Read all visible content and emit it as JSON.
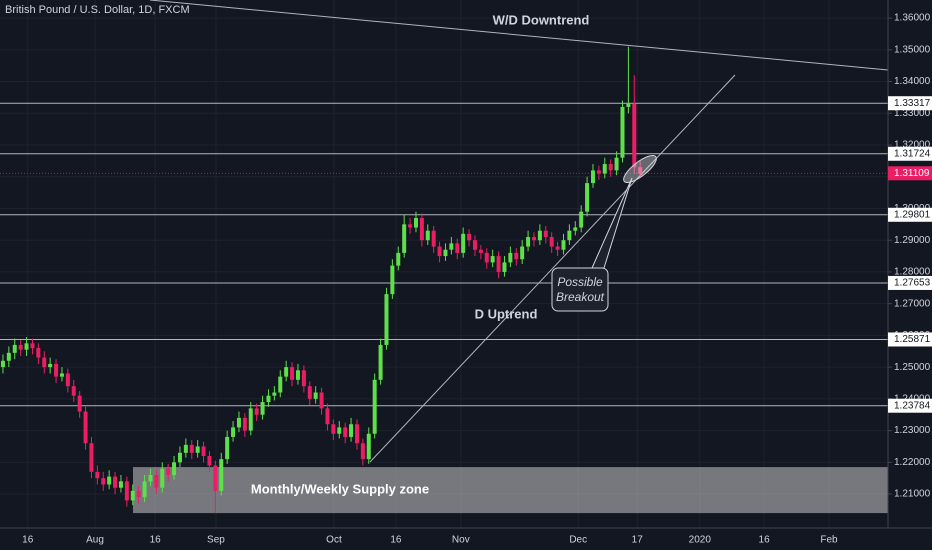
{
  "chart_data": {
    "type": "candlestick",
    "title": "British Pound / U.S. Dollar, 1D, FXCM",
    "up_color": "#5ee04a",
    "down_color": "#ec1e63",
    "grid": true,
    "ylim": [
      1.1993,
      1.3657
    ],
    "xlim": [
      -0.5,
      150
    ],
    "yticks": [
      {
        "value": 1.36,
        "label": "1.36000"
      },
      {
        "value": 1.35,
        "label": "1.35000"
      },
      {
        "value": 1.34,
        "label": "1.34000"
      },
      {
        "value": 1.33,
        "label": "1.33000"
      },
      {
        "value": 1.32,
        "label": "1.32000"
      },
      {
        "value": 1.31,
        "label": "1.31000"
      },
      {
        "value": 1.3,
        "label": "1.30000"
      },
      {
        "value": 1.29,
        "label": "1.29000"
      },
      {
        "value": 1.28,
        "label": "1.28000"
      },
      {
        "value": 1.27,
        "label": "1.27000"
      },
      {
        "value": 1.26,
        "label": "1.26000"
      },
      {
        "value": 1.25,
        "label": "1.25000"
      },
      {
        "value": 1.24,
        "label": "1.24000"
      },
      {
        "value": 1.23,
        "label": "1.23000"
      },
      {
        "value": 1.22,
        "label": "1.22000"
      },
      {
        "value": 1.21,
        "label": "1.21000"
      }
    ],
    "xticks": [
      {
        "value": 4.2,
        "label": "16"
      },
      {
        "value": 15.6,
        "label": "Aug"
      },
      {
        "value": 25.8,
        "label": "16"
      },
      {
        "value": 36.1,
        "label": "Sep"
      },
      {
        "value": 56.1,
        "label": "Oct"
      },
      {
        "value": 66.6,
        "label": "16"
      },
      {
        "value": 77.6,
        "label": "Nov"
      },
      {
        "value": 97.5,
        "label": "Dec"
      },
      {
        "value": 107.5,
        "label": "17"
      },
      {
        "value": 118.1,
        "label": "2020"
      },
      {
        "value": 129,
        "label": "16"
      },
      {
        "value": 140,
        "label": "Feb"
      }
    ],
    "levels": [
      {
        "value": 1.33317,
        "label": "1.33317"
      },
      {
        "value": 1.31724,
        "label": "1.31724"
      },
      {
        "value": 1.29801,
        "label": "1.29801"
      },
      {
        "value": 1.27653,
        "label": "1.27653"
      },
      {
        "value": 1.25871,
        "label": "1.25871"
      },
      {
        "value": 1.23784,
        "label": "1.23784"
      }
    ],
    "last_price": {
      "value": 1.31109,
      "label": "1.31109"
    },
    "supply_zone": {
      "label": "Monthly/Weekly Supply zone",
      "range": [
        1.204,
        1.2185
      ]
    },
    "annotations": {
      "downtrend": "W/D Downtrend",
      "uptrend": "D Uptrend",
      "callout": [
        "Possible",
        "Breakout"
      ]
    },
    "ohlc": [
      [
        1.25,
        1.254,
        1.248,
        1.252
      ],
      [
        1.252,
        1.2565,
        1.25,
        1.2545
      ],
      [
        1.2545,
        1.259,
        1.2525,
        1.257
      ],
      [
        1.257,
        1.2585,
        1.2535,
        1.2555
      ],
      [
        1.2555,
        1.2595,
        1.2535,
        1.2575
      ],
      [
        1.2575,
        1.259,
        1.254,
        1.256
      ],
      [
        1.256,
        1.2575,
        1.251,
        1.253
      ],
      [
        1.253,
        1.255,
        1.248,
        1.25
      ],
      [
        1.25,
        1.253,
        1.248,
        1.251
      ],
      [
        1.251,
        1.2525,
        1.245,
        1.247
      ],
      [
        1.247,
        1.25,
        1.2455,
        1.248
      ],
      [
        1.248,
        1.2495,
        1.242,
        1.244
      ],
      [
        1.244,
        1.246,
        1.239,
        1.241
      ],
      [
        1.241,
        1.2425,
        1.234,
        1.236
      ],
      [
        1.236,
        1.2375,
        1.224,
        1.226
      ],
      [
        1.226,
        1.228,
        1.215,
        1.217
      ],
      [
        1.217,
        1.219,
        1.213,
        1.215
      ],
      [
        1.215,
        1.217,
        1.211,
        1.213
      ],
      [
        1.213,
        1.2175,
        1.2115,
        1.2155
      ],
      [
        1.2155,
        1.217,
        1.21,
        1.212
      ],
      [
        1.212,
        1.216,
        1.2105,
        1.214
      ],
      [
        1.214,
        1.2155,
        1.206,
        1.208
      ],
      [
        1.208,
        1.213,
        1.2065,
        1.211
      ],
      [
        1.211,
        1.2125,
        1.207,
        1.209
      ],
      [
        1.209,
        1.216,
        1.2075,
        1.214
      ],
      [
        1.214,
        1.218,
        1.2125,
        1.216
      ],
      [
        1.216,
        1.2175,
        1.21,
        1.212
      ],
      [
        1.212,
        1.22,
        1.2105,
        1.218
      ],
      [
        1.218,
        1.2195,
        1.214,
        1.216
      ],
      [
        1.216,
        1.222,
        1.2145,
        1.22
      ],
      [
        1.22,
        1.225,
        1.2185,
        1.223
      ],
      [
        1.223,
        1.2275,
        1.2215,
        1.2255
      ],
      [
        1.2255,
        1.227,
        1.221,
        1.223
      ],
      [
        1.223,
        1.227,
        1.2215,
        1.225
      ],
      [
        1.225,
        1.2265,
        1.22,
        1.222
      ],
      [
        1.222,
        1.2235,
        1.217,
        1.219
      ],
      [
        1.219,
        1.2205,
        1.204,
        1.211
      ],
      [
        1.211,
        1.223,
        1.2095,
        1.221
      ],
      [
        1.221,
        1.23,
        1.2195,
        1.228
      ],
      [
        1.228,
        1.233,
        1.2265,
        1.231
      ],
      [
        1.231,
        1.236,
        1.2295,
        1.234
      ],
      [
        1.234,
        1.2355,
        1.228,
        1.23
      ],
      [
        1.23,
        1.239,
        1.2285,
        1.237
      ],
      [
        1.237,
        1.2385,
        1.233,
        1.235
      ],
      [
        1.235,
        1.241,
        1.2335,
        1.239
      ],
      [
        1.239,
        1.243,
        1.2375,
        1.241
      ],
      [
        1.241,
        1.244,
        1.2395,
        1.242
      ],
      [
        1.242,
        1.249,
        1.2405,
        1.247
      ],
      [
        1.247,
        1.252,
        1.2455,
        1.25
      ],
      [
        1.25,
        1.2515,
        1.244,
        1.246
      ],
      [
        1.246,
        1.251,
        1.2445,
        1.249
      ],
      [
        1.249,
        1.2505,
        1.242,
        1.244
      ],
      [
        1.244,
        1.2455,
        1.238,
        1.24
      ],
      [
        1.24,
        1.244,
        1.2385,
        1.242
      ],
      [
        1.242,
        1.2435,
        1.235,
        1.237
      ],
      [
        1.237,
        1.2385,
        1.23,
        1.232
      ],
      [
        1.232,
        1.2335,
        1.227,
        1.229
      ],
      [
        1.229,
        1.233,
        1.2275,
        1.231
      ],
      [
        1.231,
        1.2325,
        1.226,
        1.228
      ],
      [
        1.228,
        1.234,
        1.2265,
        1.232
      ],
      [
        1.232,
        1.2335,
        1.224,
        1.226
      ],
      [
        1.226,
        1.2275,
        1.219,
        1.221
      ],
      [
        1.221,
        1.231,
        1.2195,
        1.229
      ],
      [
        1.229,
        1.248,
        1.2275,
        1.246
      ],
      [
        1.246,
        1.259,
        1.2445,
        1.257
      ],
      [
        1.257,
        1.275,
        1.2555,
        1.273
      ],
      [
        1.273,
        1.284,
        1.2715,
        1.282
      ],
      [
        1.282,
        1.288,
        1.2805,
        1.286
      ],
      [
        1.286,
        1.298,
        1.2845,
        1.295
      ],
      [
        1.295,
        1.297,
        1.292,
        1.294
      ],
      [
        1.294,
        1.299,
        1.2925,
        1.297
      ],
      [
        1.297,
        1.2985,
        1.288,
        1.29
      ],
      [
        1.29,
        1.295,
        1.2885,
        1.293
      ],
      [
        1.293,
        1.2945,
        1.286,
        1.288
      ],
      [
        1.288,
        1.2895,
        1.283,
        1.285
      ],
      [
        1.285,
        1.289,
        1.2835,
        1.287
      ],
      [
        1.287,
        1.291,
        1.2855,
        1.289
      ],
      [
        1.289,
        1.2905,
        1.284,
        1.286
      ],
      [
        1.286,
        1.294,
        1.2845,
        1.292
      ],
      [
        1.292,
        1.2935,
        1.288,
        1.29
      ],
      [
        1.29,
        1.2915,
        1.285,
        1.287
      ],
      [
        1.287,
        1.2885,
        1.284,
        1.286
      ],
      [
        1.286,
        1.2875,
        1.281,
        1.283
      ],
      [
        1.283,
        1.287,
        1.2815,
        1.285
      ],
      [
        1.285,
        1.2865,
        1.278,
        1.28
      ],
      [
        1.28,
        1.285,
        1.2785,
        1.283
      ],
      [
        1.283,
        1.288,
        1.2815,
        1.286
      ],
      [
        1.286,
        1.2875,
        1.282,
        1.284
      ],
      [
        1.284,
        1.29,
        1.2825,
        1.288
      ],
      [
        1.288,
        1.293,
        1.2865,
        1.291
      ],
      [
        1.291,
        1.2925,
        1.288,
        1.29
      ],
      [
        1.29,
        1.295,
        1.2885,
        1.293
      ],
      [
        1.293,
        1.2945,
        1.289,
        1.291
      ],
      [
        1.291,
        1.2925,
        1.286,
        1.288
      ],
      [
        1.288,
        1.2895,
        1.285,
        1.287
      ],
      [
        1.287,
        1.292,
        1.2855,
        1.29
      ],
      [
        1.29,
        1.295,
        1.2885,
        1.293
      ],
      [
        1.293,
        1.296,
        1.2915,
        1.294
      ],
      [
        1.294,
        1.301,
        1.2925,
        1.299
      ],
      [
        1.299,
        1.31,
        1.2975,
        1.308
      ],
      [
        1.308,
        1.314,
        1.3065,
        1.312
      ],
      [
        1.312,
        1.3135,
        1.309,
        1.311
      ],
      [
        1.311,
        1.316,
        1.3095,
        1.314
      ],
      [
        1.314,
        1.3155,
        1.31,
        1.312
      ],
      [
        1.312,
        1.318,
        1.3105,
        1.316
      ],
      [
        1.316,
        1.334,
        1.3145,
        1.332
      ],
      [
        1.332,
        1.351,
        1.33,
        1.333
      ],
      [
        1.333,
        1.342,
        1.311,
        1.313
      ],
      [
        1.313,
        1.315,
        1.31,
        1.3109
      ]
    ]
  }
}
